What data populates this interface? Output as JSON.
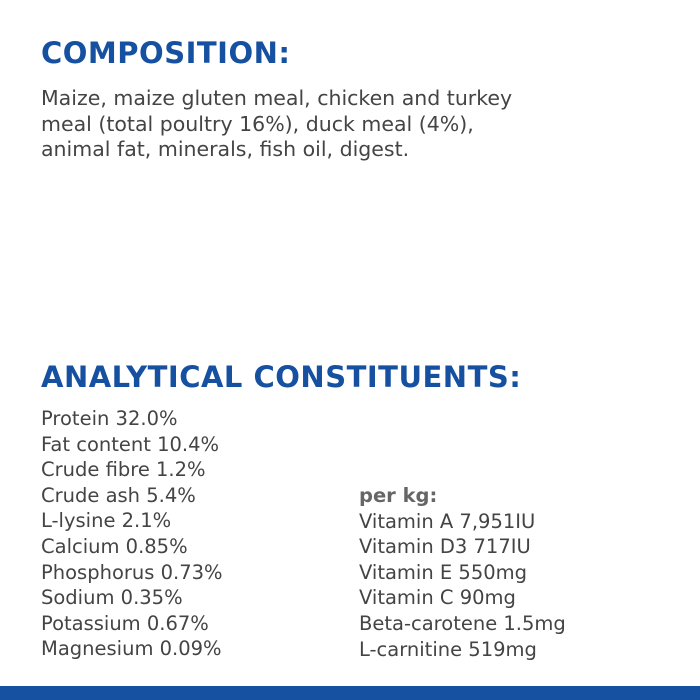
{
  "composition": {
    "heading": "COMPOSITION:",
    "lines": [
      "Maize, maize gluten meal, chicken and turkey",
      "meal (total poultry 16%), duck meal (4%),",
      "animal fat, minerals, fish oil, digest."
    ]
  },
  "analytical": {
    "heading": "ANALYTICAL CONSTITUENTS:",
    "left": [
      "Protein 32.0%",
      "Fat content 10.4%",
      "Crude fibre 1.2%",
      "Crude ash 5.4%",
      "L-lysine 2.1%",
      "Calcium 0.85%",
      "Phosphorus 0.73%",
      "Sodium 0.35%",
      "Potassium 0.67%",
      "Magnesium 0.09%"
    ],
    "per_kg_heading": "per kg:",
    "per_kg": [
      "Vitamin A 7,951IU",
      "Vitamin D3 717IU",
      "Vitamin E 550mg",
      "Vitamin C 90mg",
      "Beta-carotene 1.5mg",
      "L-carnitine 519mg"
    ]
  }
}
